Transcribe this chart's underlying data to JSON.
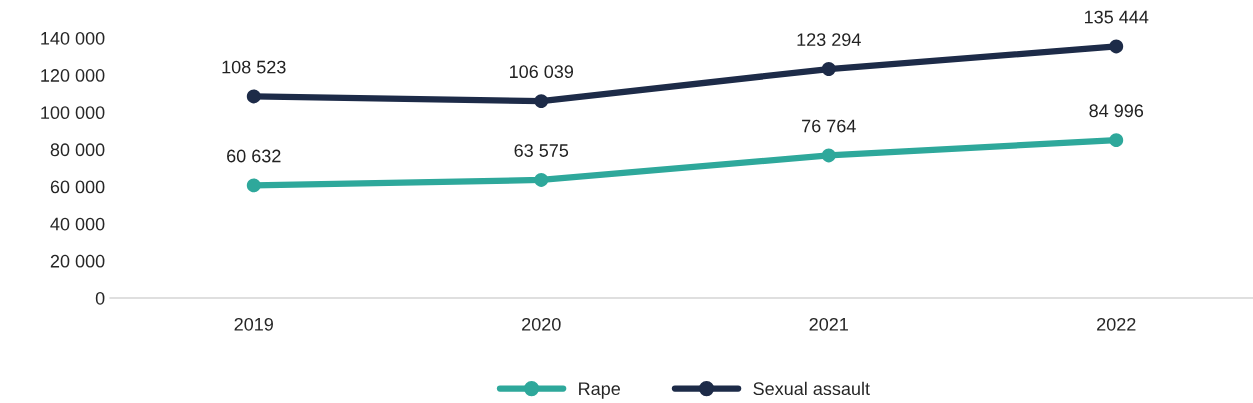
{
  "chart_data": {
    "type": "line",
    "categories": [
      "2019",
      "2020",
      "2021",
      "2022"
    ],
    "series": [
      {
        "name": "Rape",
        "color": "#2ea89b",
        "values": [
          60632,
          63575,
          76764,
          84996
        ],
        "value_labels": [
          "60 632",
          "63 575",
          "76 764",
          "84 996"
        ]
      },
      {
        "name": "Sexual assault",
        "color": "#1d2b48",
        "values": [
          108523,
          106039,
          123294,
          135444
        ],
        "value_labels": [
          "108 523",
          "106 039",
          "123 294",
          "135 444"
        ]
      }
    ],
    "ylim": [
      0,
      140000
    ],
    "yticks": [
      {
        "value": 0,
        "label": "0"
      },
      {
        "value": 20000,
        "label": "20 000"
      },
      {
        "value": 40000,
        "label": "40 000"
      },
      {
        "value": 60000,
        "label": "60 000"
      },
      {
        "value": 80000,
        "label": "80 000"
      },
      {
        "value": 100000,
        "label": "100 000"
      },
      {
        "value": 120000,
        "label": "120 000"
      },
      {
        "value": 140000,
        "label": "140 000"
      }
    ],
    "marker": "circle",
    "line_style": "solid",
    "grid": false,
    "legend": "bottom"
  }
}
